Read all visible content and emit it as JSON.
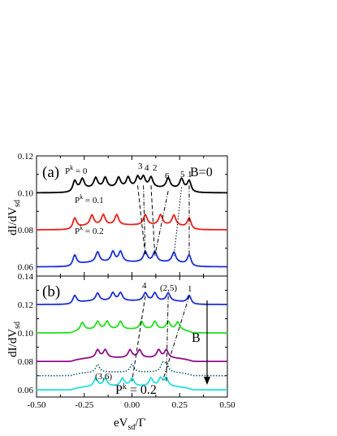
{
  "chart_data": [
    {
      "type": "line",
      "panel_label": "(a)",
      "ylabel_main": "dI/dV",
      "ylabel_sub": "sd",
      "ylim": [
        0.055,
        0.12
      ],
      "yticks": [
        "0.06",
        "0.08",
        "0.10",
        "0.12"
      ],
      "xlim": [
        -0.5,
        0.5
      ],
      "annotations": {
        "b_label": "B=0",
        "pk0_main": "P",
        "pk0_sup": "k",
        "pk0_rest": " = 0",
        "pk1_main": "P",
        "pk1_sup": "k",
        "pk1_rest": " = 0.1",
        "pk2_main": "P",
        "pk2_sup": "k",
        "pk2_rest": " = 0.2",
        "peak_labels": [
          "3",
          "4",
          "2",
          "6",
          "5",
          "1"
        ]
      },
      "series": [
        {
          "color": "#000000",
          "baseline": 0.1,
          "peaks": [
            -0.3,
            -0.26,
            -0.19,
            -0.14,
            -0.07,
            -0.02,
            0.03,
            0.06,
            0.1,
            0.19,
            0.26,
            0.3
          ]
        },
        {
          "color": "#e8201a",
          "baseline": 0.08,
          "peaks": [
            -0.3,
            -0.21,
            -0.15,
            -0.08,
            0.07,
            0.15,
            0.22,
            0.3
          ]
        },
        {
          "color": "#1a2fd6",
          "baseline": 0.06,
          "peaks": [
            -0.3,
            -0.18,
            -0.1,
            -0.06,
            0.07,
            0.12,
            0.22,
            0.3
          ]
        }
      ]
    },
    {
      "type": "line",
      "panel_label": "(b)",
      "ylabel_main": "dI/dV",
      "ylabel_sub": "sd",
      "ylim": [
        0.055,
        0.14
      ],
      "yticks": [
        "0.06",
        "0.08",
        "0.10",
        "0.12",
        "0.14"
      ],
      "xlim": [
        -0.5,
        0.5
      ],
      "xticks": [
        "-0.50",
        "-0.25",
        "0.00",
        "0.25",
        "0.50"
      ],
      "xlabel_main": "eV",
      "xlabel_sub": "sd",
      "xlabel_tail": "/Γ",
      "annotations": {
        "label_4": "4",
        "label_25": "(2,5)",
        "label_1": "1",
        "label_36": "(3,6)",
        "b_arrow_label": "B",
        "pk_main": "P",
        "pk_sup": "k",
        "pk_rest": " = 0.2"
      },
      "series": [
        {
          "color": "#1a2fd6",
          "baseline": 0.12,
          "peaks": [
            -0.3,
            -0.18,
            -0.1,
            -0.06,
            0.07,
            0.12,
            0.19,
            0.3
          ]
        },
        {
          "color": "#22e01f",
          "baseline": 0.1,
          "peaks": [
            -0.26,
            -0.18,
            -0.13,
            -0.06,
            0.05,
            0.12,
            0.19,
            0.24
          ]
        },
        {
          "color": "#8e0f8a",
          "baseline": 0.08,
          "peaks": [
            -0.18,
            -0.14,
            -0.01,
            0.04,
            0.14,
            0.18
          ]
        },
        {
          "color": "#0b5f63",
          "baseline": 0.07,
          "dotted": true,
          "peaks": [
            -0.18,
            0.0,
            0.16,
            0.18
          ]
        },
        {
          "color": "#22e0e0",
          "baseline": 0.06,
          "peaks": [
            -0.19,
            -0.14,
            -0.05,
            0.0,
            0.1,
            0.15,
            0.18
          ]
        }
      ]
    }
  ]
}
